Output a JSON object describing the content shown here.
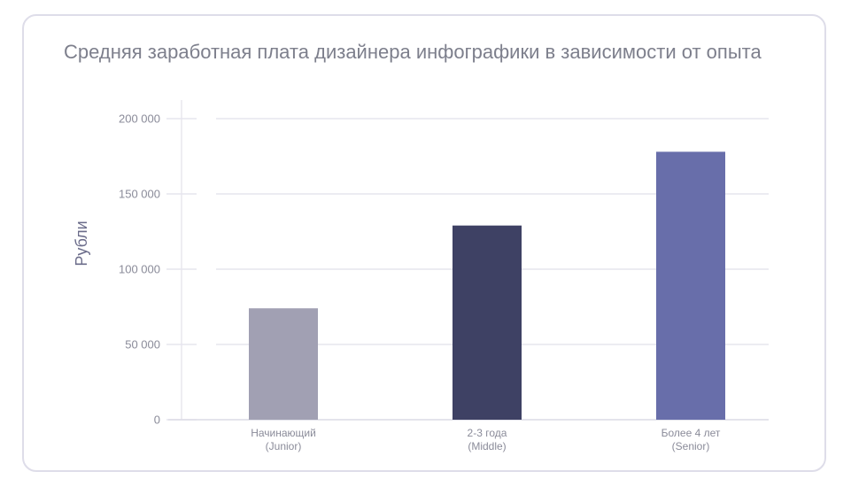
{
  "chart_data": {
    "type": "bar",
    "title": "Средняя заработная плата дизайнера инфографики в зависимости от опыта",
    "xlabel": "",
    "ylabel": "Рубли",
    "ylim": [
      0,
      200000
    ],
    "yticks": [
      0,
      50000,
      100000,
      150000,
      200000
    ],
    "ytick_labels": [
      "0",
      "50 000",
      "100 000",
      "150 000",
      "200 000"
    ],
    "categories": [
      [
        "Начинающий",
        "(Junior)"
      ],
      [
        "2-3 года",
        "(Middle)"
      ],
      [
        "Более 4 лет",
        "(Senior)"
      ]
    ],
    "values": [
      74000,
      129000,
      178000
    ],
    "colors": [
      "#a1a0b3",
      "#3e4164",
      "#686eaa"
    ],
    "grid": true,
    "legend": "none"
  }
}
